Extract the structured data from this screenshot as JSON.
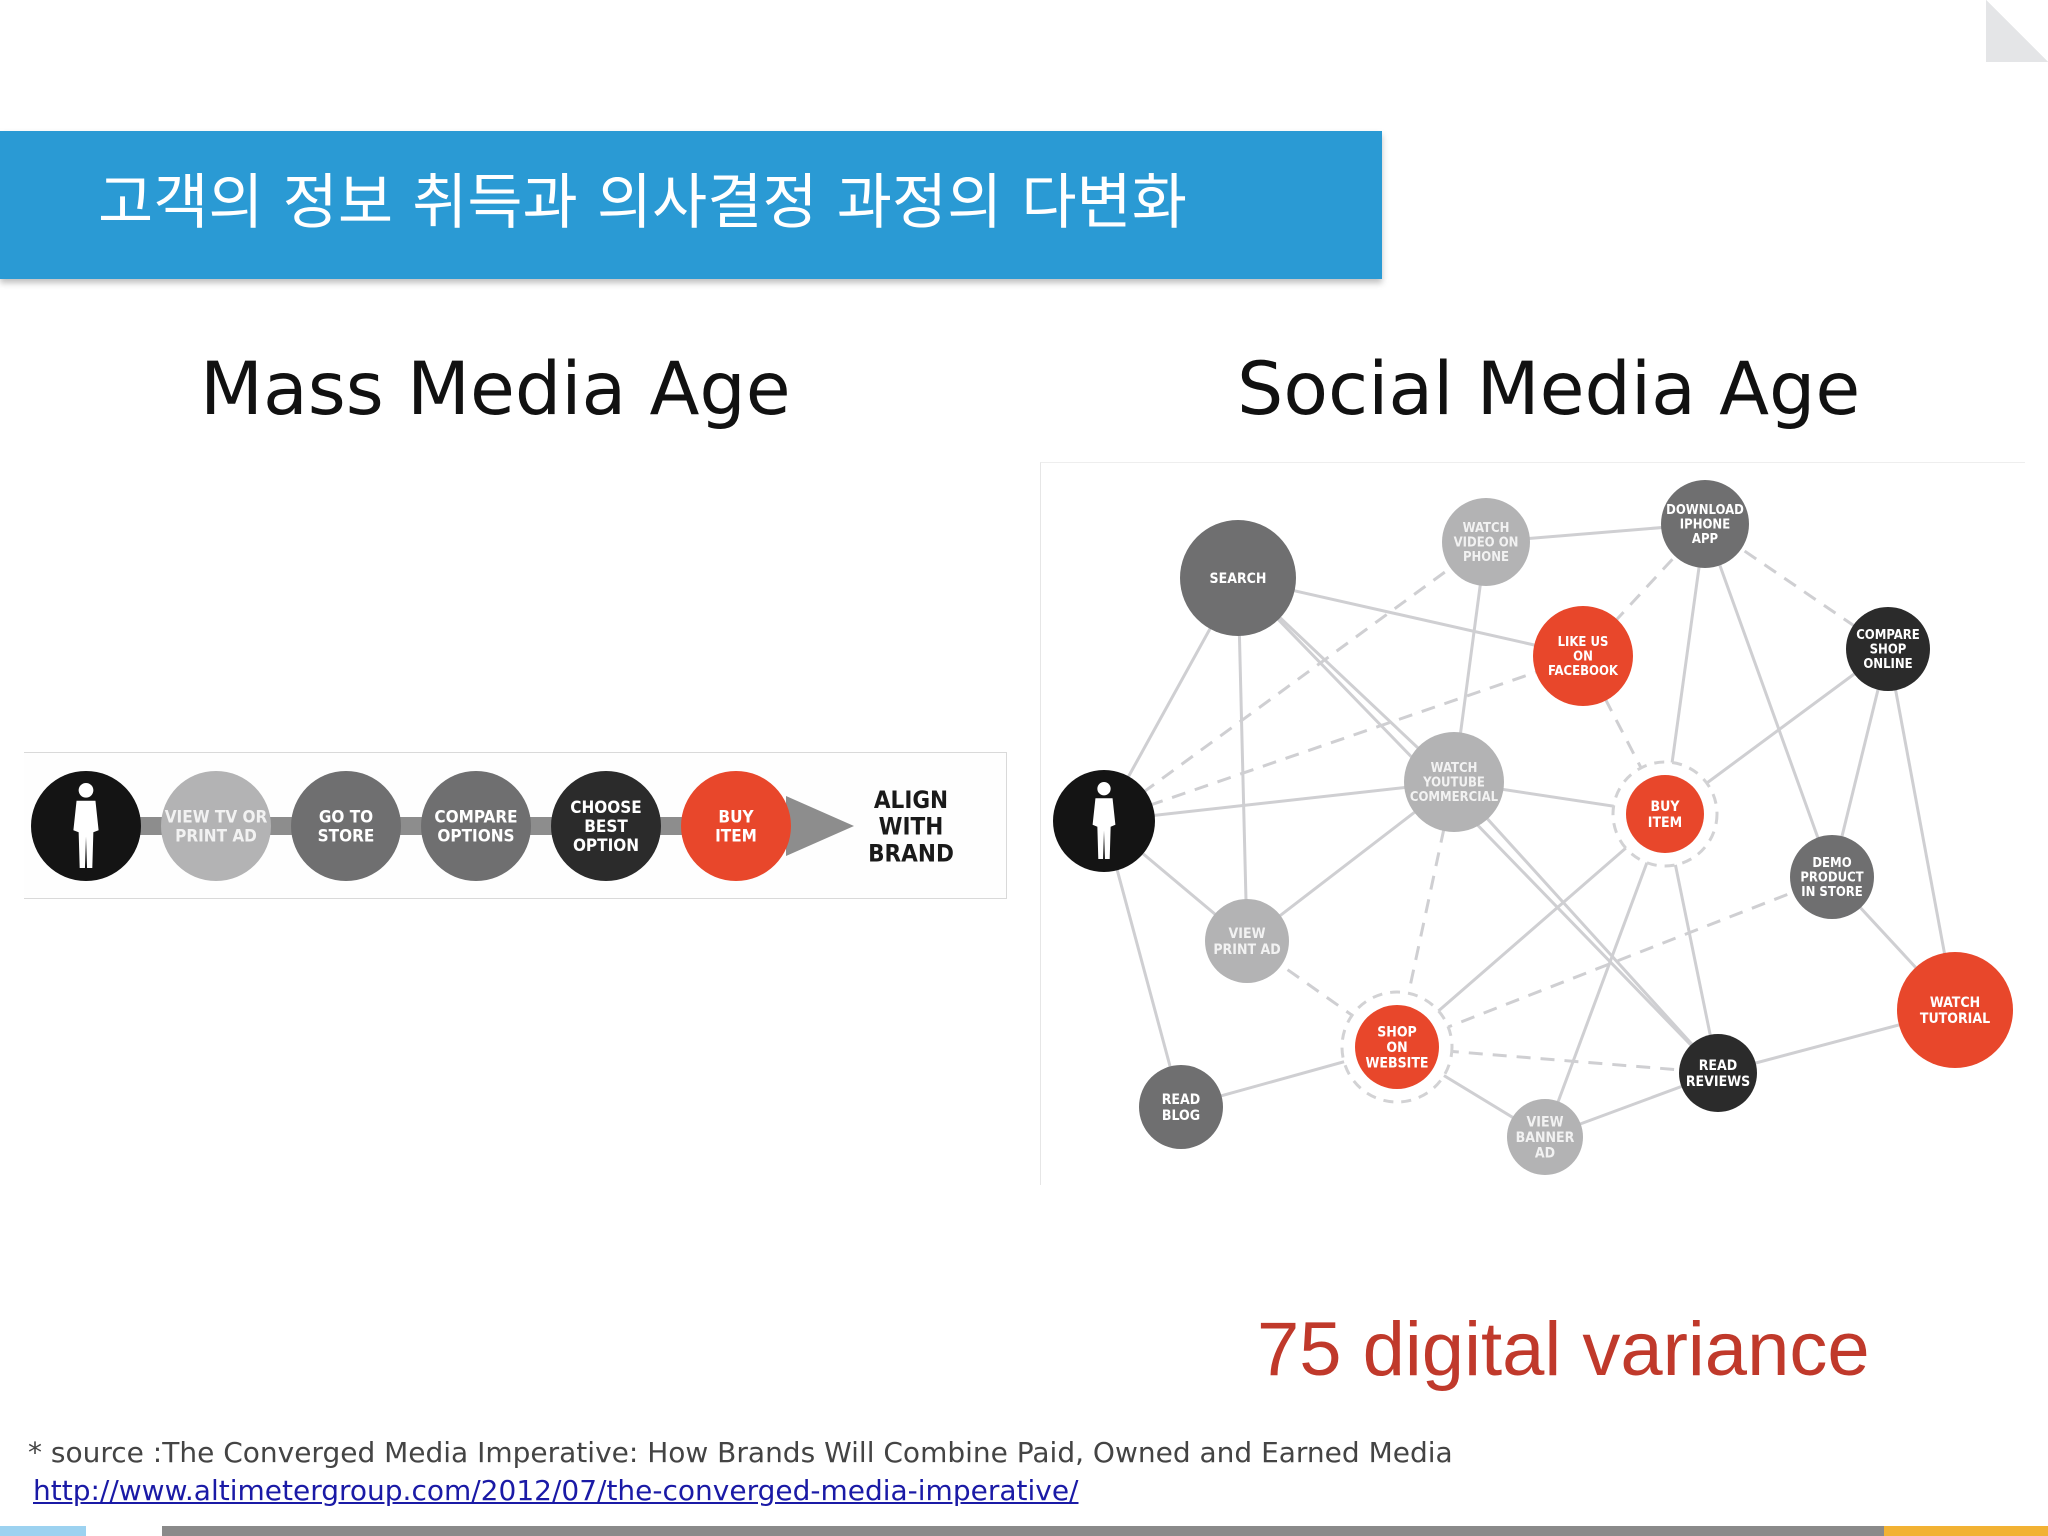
{
  "slide": {
    "title": "고객의 정보 취득과 의사결정 과정의 다변화",
    "left_heading": "Mass Media Age",
    "right_heading": "Social Media Age",
    "highlight": "75 digital variance",
    "source_text": "* source :The Converged Media Imperative: How Brands Will Combine Paid, Owned and Earned Media",
    "source_url": "http://www.altimetergroup.com/2012/07/the-converged-media-imperative/"
  },
  "colors": {
    "title_bar": "#2a9ad4",
    "accent_red": "#e8472b",
    "dark_node": "#2b2b2b",
    "mid_node": "#6f6f70",
    "light_node": "#b3b3b4"
  },
  "mass_journey": {
    "steps": [
      {
        "id": "consumer",
        "label": "",
        "tone": "black"
      },
      {
        "id": "view-tv",
        "label": "VIEW TV OR\nPRINT AD",
        "tone": "light"
      },
      {
        "id": "go-store",
        "label": "GO TO\nSTORE",
        "tone": "mid"
      },
      {
        "id": "compare",
        "label": "COMPARE\nOPTIONS",
        "tone": "mid"
      },
      {
        "id": "choose",
        "label": "CHOOSE\nBEST\nOPTION",
        "tone": "dark"
      },
      {
        "id": "buy",
        "label": "BUY\nITEM",
        "tone": "red"
      }
    ],
    "end_label": "ALIGN\nWITH\nBRAND"
  },
  "social_network": {
    "nodes": [
      {
        "id": "consumer",
        "label": "",
        "tone": "black"
      },
      {
        "id": "search",
        "label": "SEARCH",
        "tone": "mid"
      },
      {
        "id": "watch-video-phone",
        "label": "WATCH\nVIDEO ON\nPHONE",
        "tone": "light"
      },
      {
        "id": "download-app",
        "label": "DOWNLOAD\nIPHONE\nAPP",
        "tone": "mid"
      },
      {
        "id": "like-facebook",
        "label": "LIKE US\nON\nFACEBOOK",
        "tone": "red"
      },
      {
        "id": "compare-shop",
        "label": "COMPARE\nSHOP\nONLINE",
        "tone": "dark"
      },
      {
        "id": "watch-youtube",
        "label": "WATCH\nYOUTUBE\nCOMMERCIAL",
        "tone": "light"
      },
      {
        "id": "buy-item",
        "label": "BUY\nITEM",
        "tone": "red",
        "ring": true
      },
      {
        "id": "demo-product",
        "label": "DEMO\nPRODUCT\nIN STORE",
        "tone": "mid"
      },
      {
        "id": "view-print",
        "label": "VIEW\nPRINT AD",
        "tone": "light"
      },
      {
        "id": "watch-tutorial",
        "label": "WATCH\nTUTORIAL",
        "tone": "red"
      },
      {
        "id": "shop-website",
        "label": "SHOP\nON\nWEBSITE",
        "tone": "red",
        "ring": true
      },
      {
        "id": "read-reviews",
        "label": "READ\nREVIEWS",
        "tone": "dark"
      },
      {
        "id": "read-blog",
        "label": "READ\nBLOG",
        "tone": "mid"
      },
      {
        "id": "view-banner",
        "label": "VIEW\nBANNER\nAD",
        "tone": "light"
      }
    ],
    "edges": [
      [
        "consumer",
        "search",
        "solid"
      ],
      [
        "consumer",
        "watch-youtube",
        "solid"
      ],
      [
        "consumer",
        "view-print",
        "solid"
      ],
      [
        "consumer",
        "read-blog",
        "solid"
      ],
      [
        "consumer",
        "like-facebook",
        "dashed"
      ],
      [
        "consumer",
        "watch-video-phone",
        "dashed"
      ],
      [
        "search",
        "watch-youtube",
        "solid"
      ],
      [
        "search",
        "view-print",
        "solid"
      ],
      [
        "search",
        "like-facebook",
        "solid"
      ],
      [
        "search",
        "read-reviews",
        "solid"
      ],
      [
        "watch-video-phone",
        "download-app",
        "solid"
      ],
      [
        "watch-video-phone",
        "watch-youtube",
        "solid"
      ],
      [
        "download-app",
        "buy-item",
        "solid"
      ],
      [
        "download-app",
        "demo-product",
        "solid"
      ],
      [
        "download-app",
        "like-facebook",
        "dashed"
      ],
      [
        "download-app",
        "compare-shop",
        "dashed"
      ],
      [
        "like-facebook",
        "buy-item",
        "dashed"
      ],
      [
        "compare-shop",
        "buy-item",
        "solid"
      ],
      [
        "compare-shop",
        "demo-product",
        "solid"
      ],
      [
        "compare-shop",
        "watch-tutorial",
        "solid"
      ],
      [
        "watch-youtube",
        "buy-item",
        "solid"
      ],
      [
        "watch-youtube",
        "read-reviews",
        "solid"
      ],
      [
        "watch-youtube",
        "shop-website",
        "dashed"
      ],
      [
        "buy-item",
        "read-reviews",
        "solid"
      ],
      [
        "demo-product",
        "watch-tutorial",
        "solid"
      ],
      [
        "demo-product",
        "shop-website",
        "dashed"
      ],
      [
        "view-print",
        "watch-youtube",
        "solid"
      ],
      [
        "read-blog",
        "shop-website",
        "solid"
      ],
      [
        "shop-website",
        "buy-item",
        "solid"
      ],
      [
        "shop-website",
        "view-print",
        "dashed"
      ],
      [
        "shop-website",
        "read-reviews",
        "dashed"
      ],
      [
        "shop-website",
        "view-banner",
        "solid"
      ],
      [
        "view-banner",
        "read-reviews",
        "solid"
      ],
      [
        "read-reviews",
        "watch-tutorial",
        "solid"
      ],
      [
        "buy-item",
        "view-banner",
        "solid"
      ]
    ]
  }
}
